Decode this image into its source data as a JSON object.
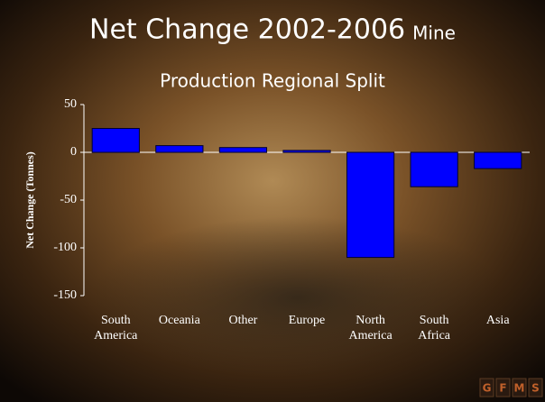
{
  "chart_data": {
    "type": "bar",
    "title": [
      "Net Change 2002-2006",
      "Mine",
      "Production Regional Split"
    ],
    "y_label": "Net Change (Tonnes)",
    "categories": [
      "South America",
      "Oceania",
      "Other",
      "Europe",
      "North America",
      "South Africa",
      "Asia"
    ],
    "values": [
      25,
      7,
      5,
      2,
      -110,
      -36,
      -17
    ],
    "color": "#0000ff",
    "ylim": [
      -150,
      50
    ],
    "yticks": [
      -150,
      -100,
      -50,
      0,
      50
    ],
    "logo": [
      "G",
      "F",
      "M",
      "S"
    ]
  }
}
